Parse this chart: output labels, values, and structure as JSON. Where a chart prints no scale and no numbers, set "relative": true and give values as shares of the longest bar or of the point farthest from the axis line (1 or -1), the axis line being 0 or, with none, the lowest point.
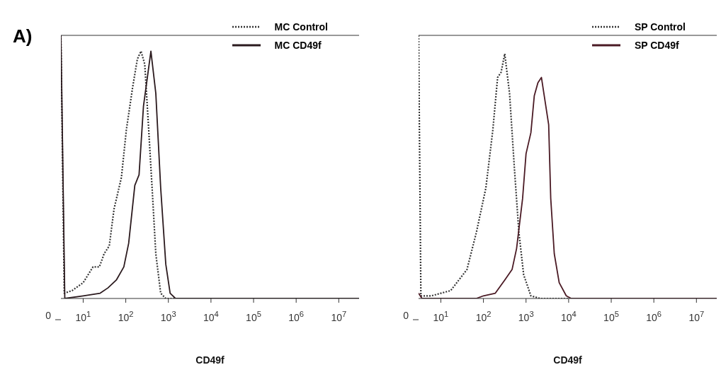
{
  "chart_data": [
    {
      "type": "line",
      "xlabel": "CD49f",
      "relative": true,
      "log": "x",
      "legend": "top right",
      "marker": "none",
      "title": "A)",
      "annotations": [
        "0"
      ],
      "xlim": [
        3,
        30000000
      ],
      "xticks": [
        {
          "value": 10,
          "label": "10$^{1}$"
        },
        {
          "value": 100,
          "label": "10$^{2}$"
        },
        {
          "value": 1000,
          "label": "10$^{3}$"
        },
        {
          "value": 10000,
          "label": "10$^{4}$"
        },
        {
          "value": 100000,
          "label": "10$^{5}$"
        },
        {
          "value": 1000000,
          "label": "10$^{6}$"
        },
        {
          "value": 10000000,
          "label": "10$^{7}$"
        }
      ],
      "series": [
        {
          "name": "MC Control",
          "color": "#333333",
          "line_style": "dotted",
          "x": [
            3,
            3.6,
            5.5,
            10,
            17,
            24,
            31,
            41,
            53,
            79,
            103,
            144,
            187,
            228,
            279,
            340,
            415,
            507,
            660,
            870,
            10000,
            100000,
            1000000,
            10000000,
            30000000
          ],
          "values": [
            1,
            0.02,
            0.03,
            0.06,
            0.12,
            0.12,
            0.17,
            0.2,
            0.34,
            0.46,
            0.64,
            0.8,
            0.91,
            0.94,
            0.89,
            0.66,
            0.42,
            0.17,
            0.02,
            0,
            0,
            0,
            0,
            0,
            0
          ]
        },
        {
          "name": "MC CD49f",
          "color": "#2b1a1e",
          "line_style": "solid",
          "x": [
            3,
            3.7,
            10,
            25,
            38,
            60,
            90,
            117,
            163,
            205,
            260,
            389,
            507,
            660,
            870,
            1100,
            1470,
            10000,
            100000,
            1000000,
            10000000,
            30000000
          ],
          "values": [
            1,
            0,
            0.01,
            0.02,
            0.04,
            0.07,
            0.12,
            0.21,
            0.43,
            0.47,
            0.73,
            0.94,
            0.78,
            0.42,
            0.13,
            0.02,
            0,
            0,
            0,
            0,
            0,
            0
          ]
        }
      ]
    },
    {
      "type": "line",
      "xlabel": "CD49f",
      "relative": true,
      "log": "x",
      "legend": "top right",
      "marker": "none",
      "annotations": [
        "0"
      ],
      "xlim": [
        3,
        30000000
      ],
      "xticks": [
        {
          "value": 10,
          "label": "10$^{1}$"
        },
        {
          "value": 100,
          "label": "10$^{2}$"
        },
        {
          "value": 1000,
          "label": "10$^{3}$"
        },
        {
          "value": 10000,
          "label": "10$^{4}$"
        },
        {
          "value": 100000,
          "label": "10$^{5}$"
        },
        {
          "value": 1000000,
          "label": "10$^{6}$"
        },
        {
          "value": 10000000,
          "label": "10$^{7}$"
        }
      ],
      "series": [
        {
          "name": "SP Control",
          "color": "#333333",
          "line_style": "dotted",
          "x": [
            3,
            3.4,
            6,
            17,
            41,
            68,
            114,
            166,
            215,
            260,
            316,
            410,
            530,
            680,
            880,
            1300,
            2150,
            10000,
            100000,
            1000000,
            10000000,
            30000000
          ],
          "values": [
            1,
            0.01,
            0.01,
            0.03,
            0.11,
            0.25,
            0.42,
            0.64,
            0.84,
            0.86,
            0.93,
            0.78,
            0.5,
            0.25,
            0.09,
            0.01,
            0,
            0,
            0,
            0,
            0,
            0
          ]
        },
        {
          "name": "SP CD49f",
          "color": "#4a1a24",
          "line_style": "solid",
          "x": [
            3,
            3.6,
            68,
            100,
            190,
            316,
            470,
            600,
            830,
            1000,
            1300,
            1560,
            1900,
            2300,
            3400,
            3800,
            4600,
            6000,
            8800,
            11500,
            100000,
            1000000,
            10000000,
            30000000
          ],
          "values": [
            0.02,
            0,
            0,
            0.01,
            0.02,
            0.07,
            0.11,
            0.19,
            0.38,
            0.55,
            0.63,
            0.77,
            0.82,
            0.84,
            0.66,
            0.38,
            0.17,
            0.06,
            0.01,
            0,
            0,
            0,
            0,
            0
          ]
        }
      ]
    }
  ]
}
